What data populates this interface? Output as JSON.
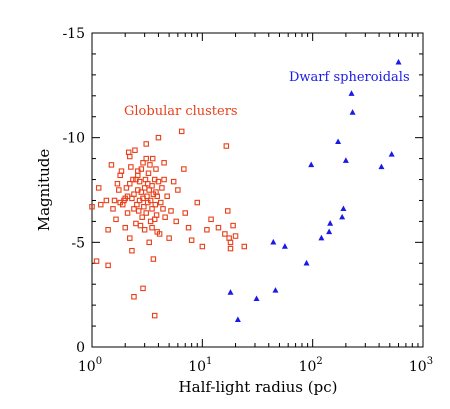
{
  "chart_data": {
    "type": "scatter",
    "xlabel": "Half-light radius (pc)",
    "ylabel": "Magnitude",
    "x_scale": "log",
    "xlim": [
      1,
      1000
    ],
    "ylim": [
      0,
      -15
    ],
    "x_ticks": [
      {
        "value": 1,
        "label": "10",
        "exp": "0"
      },
      {
        "value": 10,
        "label": "10",
        "exp": "1"
      },
      {
        "value": 100,
        "label": "10",
        "exp": "2"
      },
      {
        "value": 1000,
        "label": "10",
        "exp": "3"
      }
    ],
    "y_ticks": [
      {
        "value": 0,
        "label": "0"
      },
      {
        "value": -5,
        "label": "-5"
      },
      {
        "value": -10,
        "label": "-10"
      },
      {
        "value": -15,
        "label": "-15"
      }
    ],
    "grid": false,
    "series": [
      {
        "name": "Globular clusters",
        "color": "#e8401a",
        "marker": "square-open",
        "x": [
          1.0,
          1.1,
          1.15,
          1.2,
          1.35,
          1.4,
          1.4,
          1.5,
          1.55,
          1.6,
          1.65,
          1.7,
          1.75,
          1.8,
          1.85,
          1.9,
          1.95,
          2.0,
          2.0,
          2.05,
          2.1,
          2.1,
          2.15,
          2.2,
          2.2,
          2.25,
          2.3,
          2.3,
          2.35,
          2.4,
          2.4,
          2.45,
          2.5,
          2.5,
          2.55,
          2.6,
          2.6,
          2.65,
          2.7,
          2.7,
          2.75,
          2.8,
          2.8,
          2.85,
          2.9,
          2.9,
          2.95,
          3.0,
          3.0,
          3.05,
          3.1,
          3.1,
          3.15,
          3.2,
          3.2,
          3.25,
          3.3,
          3.3,
          3.35,
          3.4,
          3.4,
          3.5,
          3.5,
          3.55,
          3.6,
          3.6,
          3.7,
          3.7,
          3.75,
          3.8,
          3.8,
          3.85,
          3.9,
          3.9,
          4.0,
          4.0,
          4.1,
          4.2,
          4.3,
          4.4,
          4.5,
          4.6,
          4.8,
          5.0,
          5.2,
          5.5,
          5.8,
          6.0,
          6.5,
          7.0,
          7.5,
          8.0,
          9.0,
          10.0,
          11.0,
          12.0,
          14.0,
          16.0,
          16.5,
          17.0,
          17.5,
          18.0,
          18.0,
          19.0,
          20.0,
          24.0,
          2.4,
          2.9,
          3.7,
          3.5,
          1.8,
          2.6,
          3.1,
          4.5,
          6.8,
          2.2
        ],
        "y": [
          6.7,
          4.1,
          7.6,
          6.8,
          7.0,
          3.9,
          5.6,
          8.7,
          6.6,
          7.0,
          6.1,
          7.8,
          7.5,
          6.9,
          8.4,
          6.8,
          7.0,
          5.7,
          7.1,
          7.6,
          6.4,
          7.2,
          9.3,
          5.2,
          7.8,
          8.6,
          7.1,
          4.6,
          8.0,
          6.6,
          7.3,
          9.4,
          5.9,
          8.0,
          6.8,
          7.5,
          8.2,
          6.5,
          7.0,
          7.9,
          5.8,
          7.4,
          8.5,
          6.2,
          8.8,
          7.1,
          6.7,
          7.6,
          5.6,
          8.0,
          9.0,
          6.4,
          7.2,
          6.9,
          7.8,
          8.3,
          5.0,
          7.5,
          8.7,
          6.0,
          7.0,
          6.6,
          7.7,
          9.0,
          4.2,
          7.3,
          6.1,
          8.0,
          6.8,
          7.4,
          8.5,
          6.3,
          5.5,
          7.2,
          10.0,
          7.9,
          5.4,
          6.9,
          7.6,
          6.6,
          8.0,
          6.2,
          7.2,
          5.2,
          6.5,
          7.9,
          6.0,
          7.5,
          10.3,
          6.4,
          5.7,
          5.1,
          6.9,
          4.8,
          5.6,
          6.1,
          5.7,
          5.4,
          9.6,
          6.5,
          5.2,
          5.0,
          4.7,
          5.8,
          5.3,
          4.8,
          2.4,
          2.8,
          1.5,
          5.7,
          8.2,
          8.4,
          9.7,
          8.8,
          8.5,
          9.1
        ]
      },
      {
        "name": "Dwarf spheroidals",
        "color": "#1a1ae8",
        "marker": "triangle",
        "x": [
          18,
          21,
          31,
          44,
          46,
          56,
          88,
          97,
          120,
          141,
          144,
          170,
          185,
          190,
          200,
          225,
          230,
          420,
          520,
          600
        ],
        "y": [
          2.6,
          1.3,
          2.3,
          5.0,
          2.7,
          4.8,
          4.0,
          8.7,
          5.2,
          5.5,
          5.9,
          9.8,
          6.2,
          6.6,
          8.9,
          12.1,
          11.2,
          8.6,
          9.2,
          13.6
        ]
      }
    ],
    "annotations": [
      {
        "text": "Globular clusters",
        "color": "#e8401a"
      },
      {
        "text": "Dwarf spheroidals",
        "color": "#1a1ae8"
      }
    ]
  }
}
